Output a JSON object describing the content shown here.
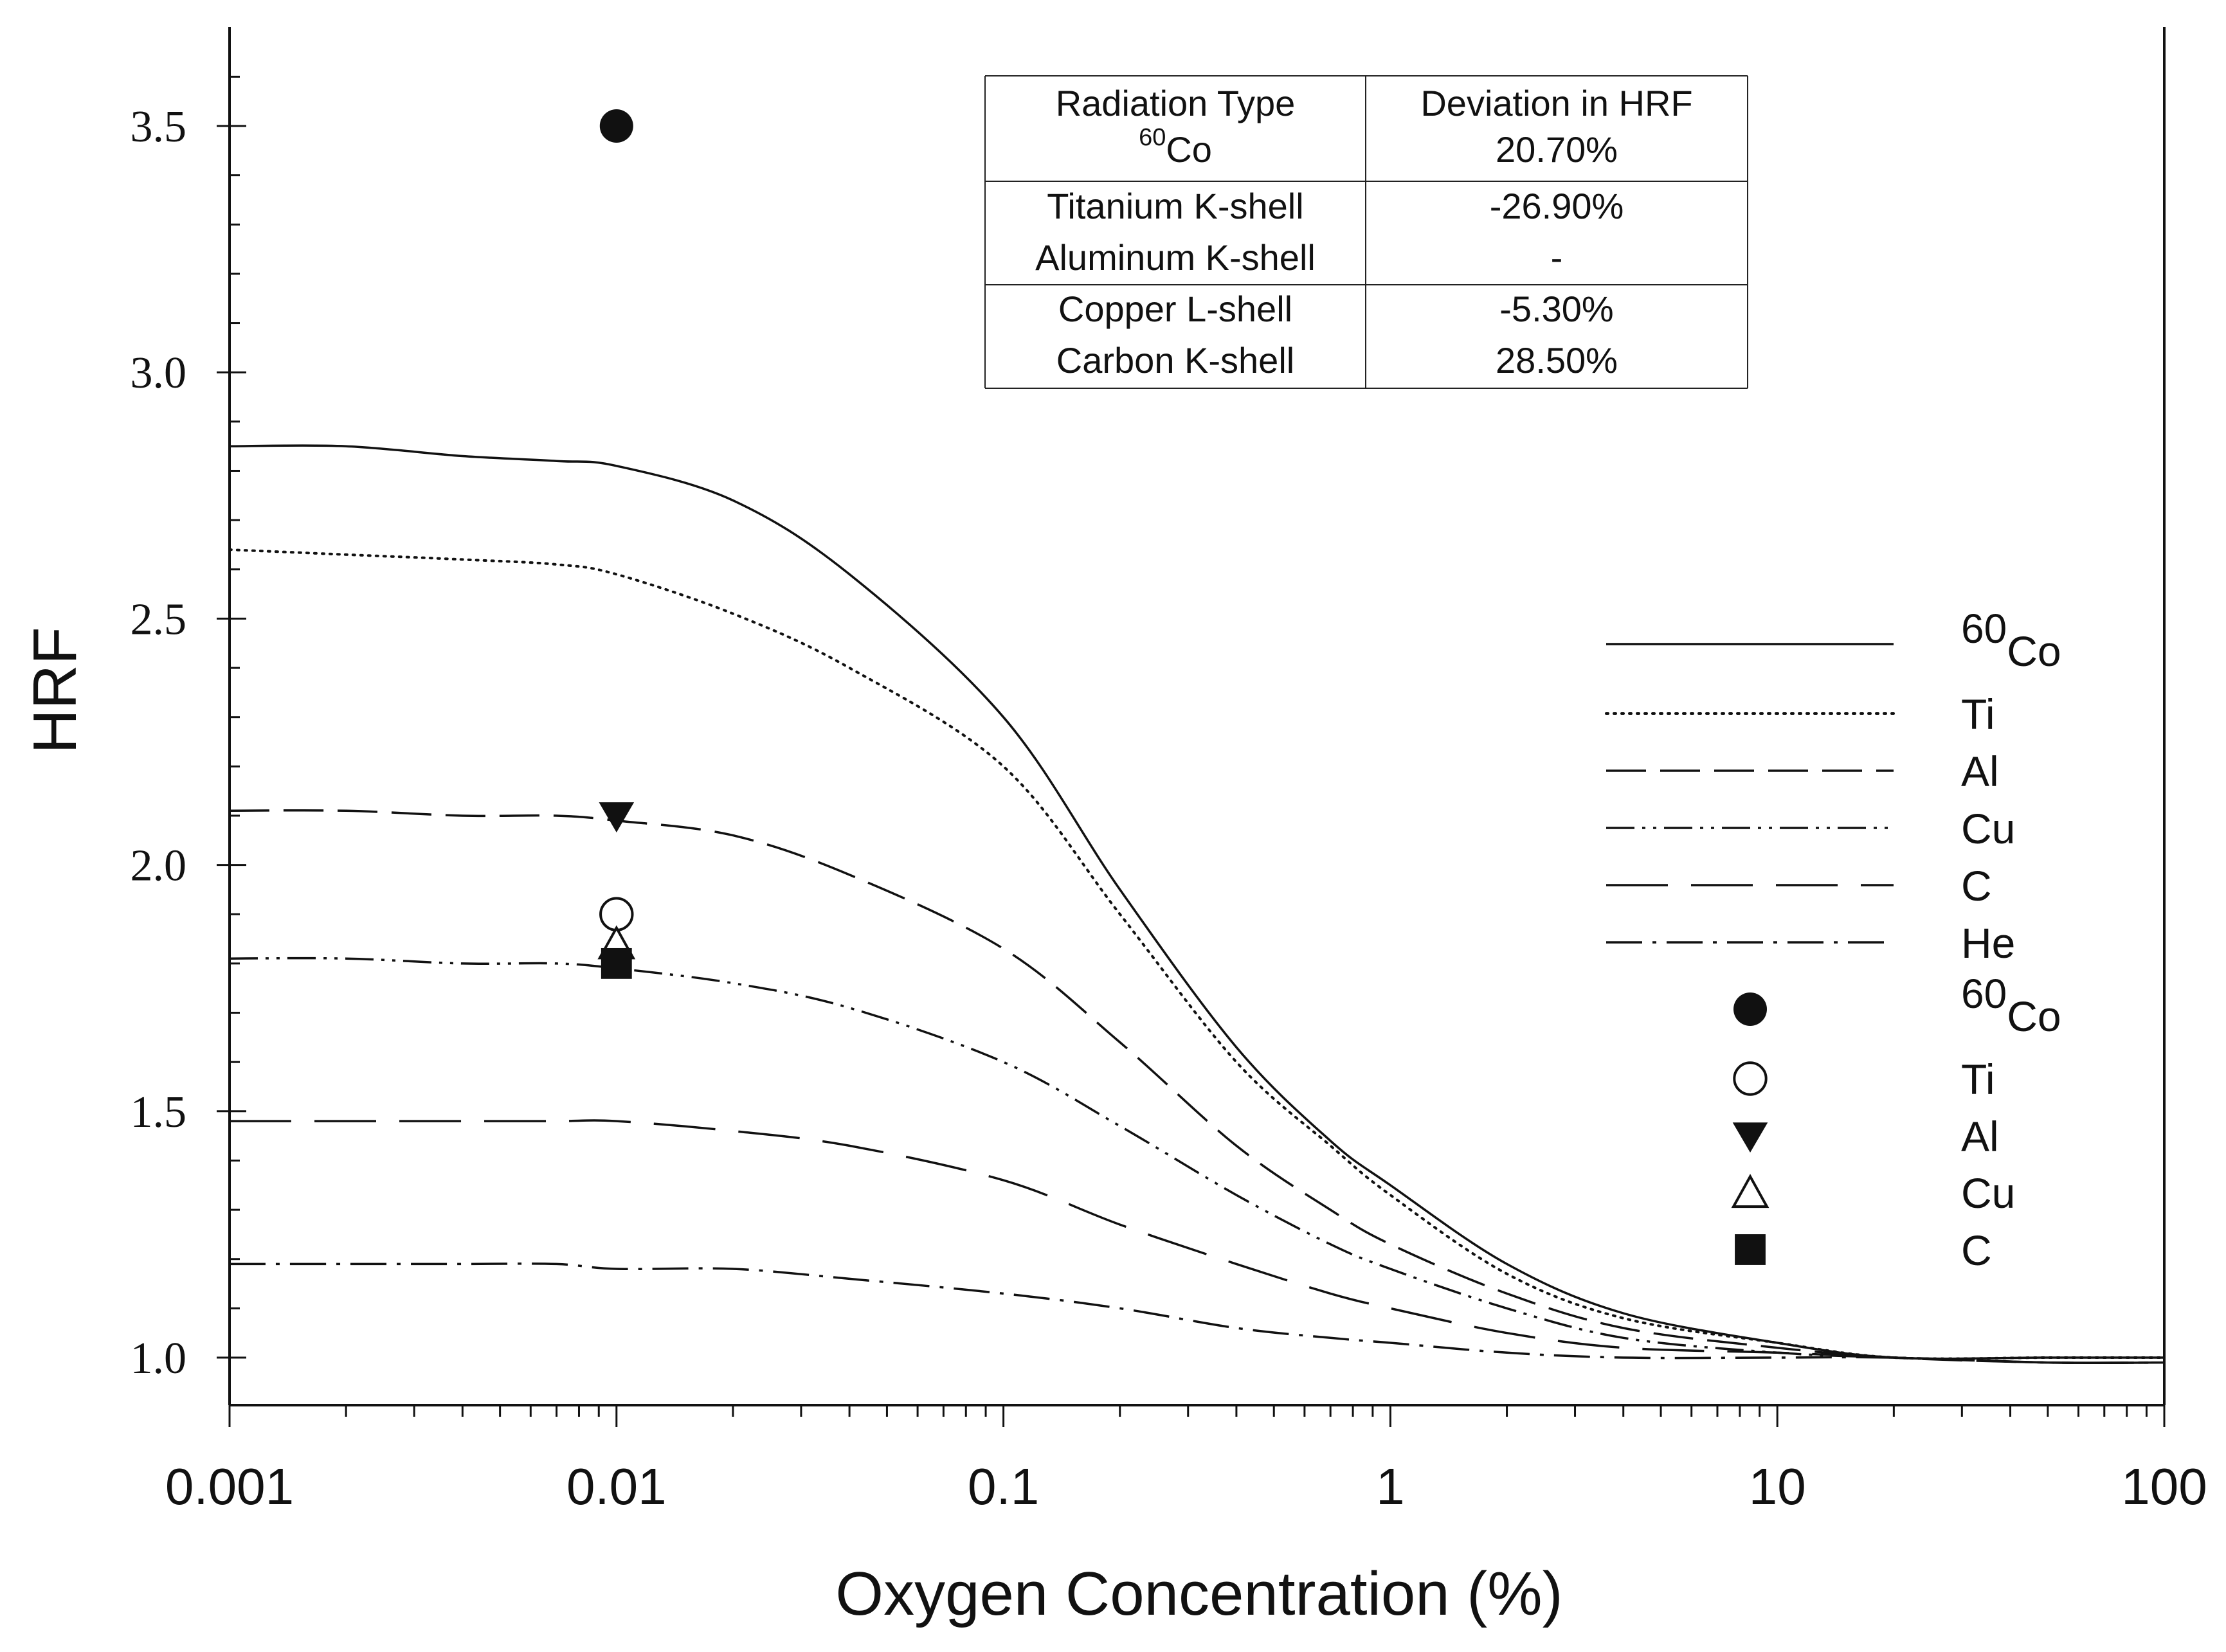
{
  "chart_data": {
    "type": "line",
    "title": "",
    "xlabel": "Oxygen Concentration (%)",
    "ylabel": "HRF",
    "xscale": "log",
    "xlim": [
      0.001,
      100
    ],
    "ylim": [
      0.9,
      3.7
    ],
    "x_tick_values": [
      0.001,
      0.01,
      0.1,
      1,
      10,
      100
    ],
    "x_tick_labels": [
      "0.001",
      "0.01",
      "0.1",
      "1",
      "10",
      "100"
    ],
    "y_tick_values": [
      1.0,
      1.5,
      2.0,
      2.5,
      3.0,
      3.5
    ],
    "y_tick_labels": [
      "1.0",
      "1.5",
      "2.0",
      "2.5",
      "3.0",
      "3.5"
    ],
    "grid": false,
    "legend_position": "right",
    "series": [
      {
        "name": "Co-60",
        "label_sup": "60",
        "label_text": "Co",
        "dash": "solid",
        "x": [
          0.001,
          0.002,
          0.004,
          0.007,
          0.01,
          0.02,
          0.04,
          0.1,
          0.2,
          0.4,
          0.7,
          1,
          2,
          4,
          10,
          20,
          50,
          100
        ],
        "y": [
          2.85,
          2.85,
          2.83,
          2.82,
          2.81,
          2.74,
          2.59,
          2.3,
          1.95,
          1.63,
          1.44,
          1.35,
          1.19,
          1.09,
          1.03,
          1.0,
          1.0,
          1.0
        ]
      },
      {
        "name": "Ti",
        "label_text": "Ti",
        "dash": "dotted",
        "x": [
          0.001,
          0.002,
          0.004,
          0.007,
          0.01,
          0.02,
          0.04,
          0.1,
          0.2,
          0.4,
          0.7,
          1,
          2,
          4,
          10,
          20,
          50,
          100
        ],
        "y": [
          2.64,
          2.63,
          2.62,
          2.61,
          2.59,
          2.51,
          2.4,
          2.2,
          1.9,
          1.6,
          1.43,
          1.33,
          1.17,
          1.08,
          1.03,
          1.0,
          1.0,
          1.0
        ]
      },
      {
        "name": "Al",
        "label_text": "Al",
        "dash": "long-dash",
        "x": [
          0.001,
          0.002,
          0.004,
          0.007,
          0.01,
          0.02,
          0.04,
          0.1,
          0.2,
          0.4,
          0.7,
          1,
          2,
          4,
          10,
          20,
          50,
          100
        ],
        "y": [
          2.11,
          2.11,
          2.1,
          2.1,
          2.09,
          2.06,
          1.98,
          1.83,
          1.64,
          1.43,
          1.3,
          1.23,
          1.13,
          1.06,
          1.02,
          1.0,
          0.99,
          0.99
        ]
      },
      {
        "name": "Cu",
        "label_text": "Cu",
        "dash": "dash-dot-dot",
        "x": [
          0.001,
          0.002,
          0.004,
          0.007,
          0.01,
          0.02,
          0.04,
          0.1,
          0.2,
          0.4,
          0.7,
          1,
          2,
          4,
          10,
          20,
          50,
          100
        ],
        "y": [
          1.81,
          1.81,
          1.8,
          1.8,
          1.79,
          1.76,
          1.71,
          1.6,
          1.47,
          1.33,
          1.23,
          1.18,
          1.1,
          1.04,
          1.01,
          1.0,
          0.99,
          0.99
        ]
      },
      {
        "name": "C",
        "label_text": "C",
        "dash": "very-long-dash",
        "x": [
          0.001,
          0.002,
          0.004,
          0.007,
          0.01,
          0.02,
          0.04,
          0.1,
          0.2,
          0.4,
          0.7,
          1,
          2,
          4,
          10,
          20,
          50,
          100
        ],
        "y": [
          1.48,
          1.48,
          1.48,
          1.48,
          1.48,
          1.46,
          1.43,
          1.36,
          1.27,
          1.19,
          1.13,
          1.1,
          1.05,
          1.02,
          1.01,
          1.0,
          0.99,
          0.99
        ]
      },
      {
        "name": "He",
        "label_text": "He",
        "dash": "dash-dot",
        "x": [
          0.001,
          0.002,
          0.004,
          0.007,
          0.01,
          0.02,
          0.04,
          0.1,
          0.2,
          0.4,
          0.7,
          1,
          2,
          4,
          10,
          20,
          50,
          100
        ],
        "y": [
          1.19,
          1.19,
          1.19,
          1.19,
          1.18,
          1.18,
          1.16,
          1.13,
          1.1,
          1.06,
          1.04,
          1.03,
          1.01,
          1.0,
          1.0,
          1.0,
          0.99,
          0.99
        ]
      }
    ],
    "points": [
      {
        "name": "Co-60",
        "label_sup": "60",
        "label_text": "Co",
        "marker": "filled-circle",
        "x": 0.01,
        "y": 3.5
      },
      {
        "name": "Ti",
        "label_text": "Ti",
        "marker": "open-circle",
        "x": 0.01,
        "y": 1.9
      },
      {
        "name": "Al",
        "label_text": "Al",
        "marker": "filled-triangle-down",
        "x": 0.01,
        "y": 2.1
      },
      {
        "name": "Cu",
        "label_text": "Cu",
        "marker": "open-triangle-up",
        "x": 0.01,
        "y": 1.84
      },
      {
        "name": "C",
        "label_text": "C",
        "marker": "filled-square",
        "x": 0.01,
        "y": 1.8
      }
    ],
    "inset_table": {
      "headers": [
        "Radiation Type",
        "Deviation in HRF"
      ],
      "groups": [
        [
          {
            "type_sup": "60",
            "type": "Co",
            "deviation": "20.70%"
          }
        ],
        [
          {
            "type": "Titanium K-shell",
            "deviation": "-26.90%"
          },
          {
            "type": "Aluminum K-shell",
            "deviation": "-"
          }
        ],
        [
          {
            "type": "Copper L-shell",
            "deviation": "-5.30%"
          },
          {
            "type": "Carbon K-shell",
            "deviation": "28.50%"
          }
        ]
      ]
    }
  }
}
